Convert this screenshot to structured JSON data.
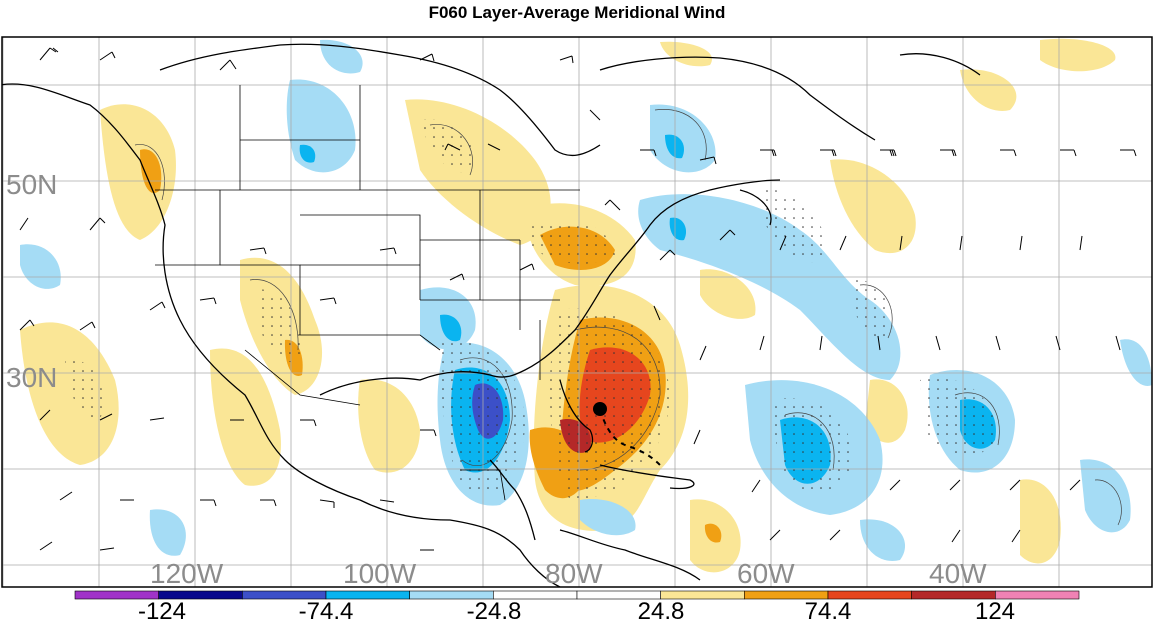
{
  "title": "F060 Layer-Average Meridional Wind",
  "lat_labels": [
    "50N",
    "30N"
  ],
  "lon_labels": [
    "120W",
    "100W",
    "80W",
    "60W",
    "40W"
  ],
  "colorbar": {
    "labels": [
      "-124",
      "-74.4",
      "-24.8",
      "24.8",
      "74.4",
      "124"
    ],
    "colors": [
      "#a033c8",
      "#0a0a8c",
      "#3c50c8",
      "#0ab4f0",
      "#a5dcf5",
      "#ffffff",
      "#ffffff",
      "#fae696",
      "#f0a014",
      "#e6461e",
      "#b42828",
      "#f082b4"
    ]
  },
  "colors": {
    "land_line": "#000000",
    "grid": "#aaaaaa",
    "pos_light": "#fae696",
    "pos_mid": "#f0a014",
    "pos_strong": "#e6461e",
    "pos_max": "#b42828",
    "neg_light": "#a5dcf5",
    "neg_mid": "#0ab4f0",
    "neg_strong": "#3c50c8"
  },
  "markers": [
    {
      "name": "storm-center",
      "lon": -78.5,
      "lat": 26.0
    }
  ]
}
